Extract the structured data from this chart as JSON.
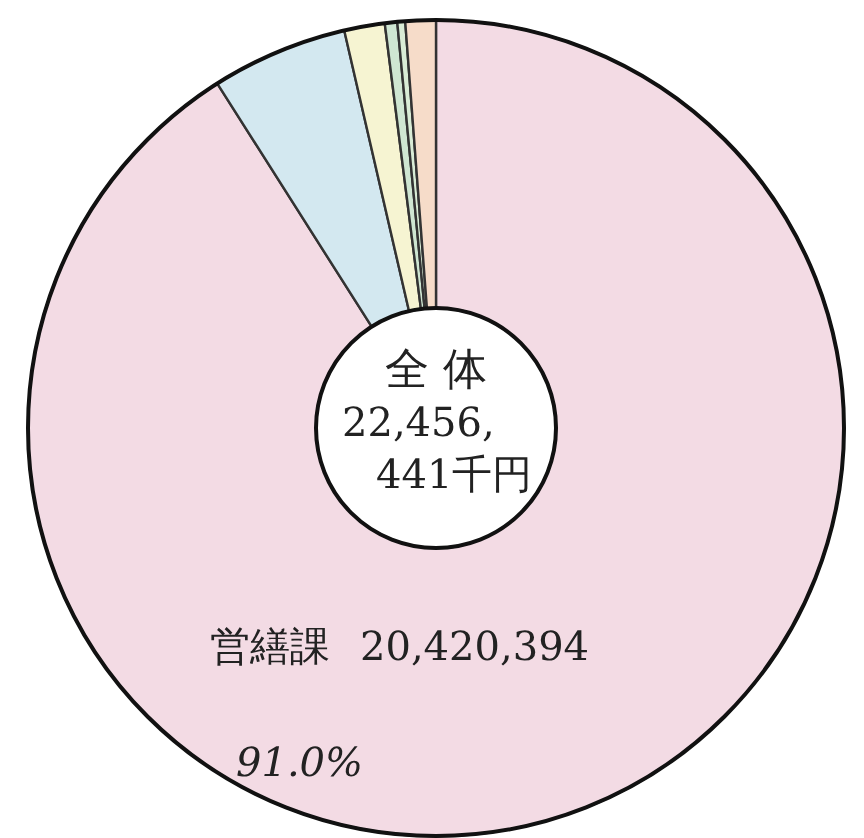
{
  "chart_data": {
    "type": "donut",
    "categories": [
      "営繕課",
      null,
      null,
      null,
      null,
      null
    ],
    "values": [
      20420394,
      1210000,
      360000,
      110000,
      70000,
      270000
    ],
    "colors": [
      "#f3dbe4",
      "#d3e8f0",
      "#f6f4d2",
      "#cfe6d2",
      "#d9ecd6",
      "#f6dcc9"
    ],
    "value_labels": [
      "20,420,394",
      null,
      null,
      null,
      null,
      null
    ],
    "annotations": [
      "全 体",
      "22,456,",
      "441千円",
      "91.0%"
    ]
  }
}
